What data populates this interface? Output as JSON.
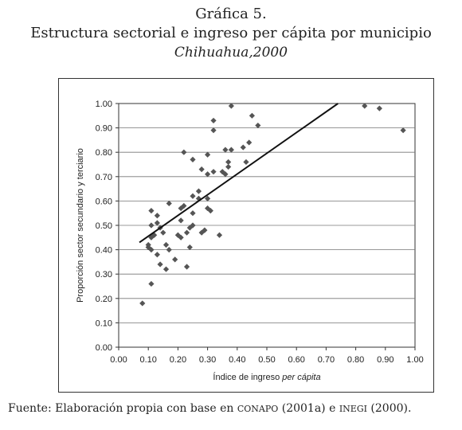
{
  "header": {
    "line1": "Gráfica 5.",
    "line2": "Estructura sectorial e ingreso per cápita por municipio",
    "line3": "Chihuahua,2000"
  },
  "source": {
    "prefix": "Fuente:  Elaboración propia con base en ",
    "org1": "CONAPO",
    "mid1": " (2001a) e ",
    "org2": "INEGI",
    "mid2": " (2000)."
  },
  "chart_data": {
    "type": "scatter",
    "title": "",
    "xlabel_prefix": "Índice de ingreso ",
    "xlabel_italic": "per cápita",
    "ylabel": "Proporción sector secundario y terciario",
    "xlim": [
      0,
      1
    ],
    "ylim": [
      0,
      1
    ],
    "xticks": [
      "0.00",
      "0.10",
      "0.20",
      "0.30",
      "0.40",
      "0.50",
      "0.60",
      "0.70",
      "0.80",
      "0.90",
      "1.00"
    ],
    "yticks": [
      "0.00",
      "0.10",
      "0.20",
      "0.30",
      "0.40",
      "0.50",
      "0.60",
      "0.70",
      "0.80",
      "0.90",
      "1.00"
    ],
    "grid": "horizontal",
    "marker_color": "#555555",
    "trendline": {
      "x": [
        0.07,
        0.74
      ],
      "y": [
        0.43,
        1.0
      ]
    },
    "points": [
      {
        "x": 0.08,
        "y": 0.18
      },
      {
        "x": 0.1,
        "y": 0.41
      },
      {
        "x": 0.1,
        "y": 0.42
      },
      {
        "x": 0.11,
        "y": 0.4
      },
      {
        "x": 0.11,
        "y": 0.45
      },
      {
        "x": 0.11,
        "y": 0.5
      },
      {
        "x": 0.11,
        "y": 0.56
      },
      {
        "x": 0.11,
        "y": 0.26
      },
      {
        "x": 0.12,
        "y": 0.46
      },
      {
        "x": 0.13,
        "y": 0.38
      },
      {
        "x": 0.13,
        "y": 0.51
      },
      {
        "x": 0.13,
        "y": 0.54
      },
      {
        "x": 0.14,
        "y": 0.34
      },
      {
        "x": 0.14,
        "y": 0.49
      },
      {
        "x": 0.15,
        "y": 0.47
      },
      {
        "x": 0.16,
        "y": 0.32
      },
      {
        "x": 0.16,
        "y": 0.42
      },
      {
        "x": 0.17,
        "y": 0.4
      },
      {
        "x": 0.17,
        "y": 0.59
      },
      {
        "x": 0.19,
        "y": 0.36
      },
      {
        "x": 0.2,
        "y": 0.46
      },
      {
        "x": 0.21,
        "y": 0.45
      },
      {
        "x": 0.21,
        "y": 0.52
      },
      {
        "x": 0.21,
        "y": 0.57
      },
      {
        "x": 0.22,
        "y": 0.8
      },
      {
        "x": 0.22,
        "y": 0.58
      },
      {
        "x": 0.23,
        "y": 0.33
      },
      {
        "x": 0.23,
        "y": 0.47
      },
      {
        "x": 0.24,
        "y": 0.41
      },
      {
        "x": 0.24,
        "y": 0.49
      },
      {
        "x": 0.25,
        "y": 0.5
      },
      {
        "x": 0.25,
        "y": 0.55
      },
      {
        "x": 0.25,
        "y": 0.62
      },
      {
        "x": 0.25,
        "y": 0.77
      },
      {
        "x": 0.27,
        "y": 0.61
      },
      {
        "x": 0.27,
        "y": 0.64
      },
      {
        "x": 0.28,
        "y": 0.47
      },
      {
        "x": 0.28,
        "y": 0.73
      },
      {
        "x": 0.29,
        "y": 0.48
      },
      {
        "x": 0.3,
        "y": 0.57
      },
      {
        "x": 0.3,
        "y": 0.61
      },
      {
        "x": 0.3,
        "y": 0.71
      },
      {
        "x": 0.3,
        "y": 0.79
      },
      {
        "x": 0.31,
        "y": 0.56
      },
      {
        "x": 0.32,
        "y": 0.72
      },
      {
        "x": 0.32,
        "y": 0.89
      },
      {
        "x": 0.32,
        "y": 0.93
      },
      {
        "x": 0.34,
        "y": 0.46
      },
      {
        "x": 0.35,
        "y": 0.72
      },
      {
        "x": 0.36,
        "y": 0.71
      },
      {
        "x": 0.36,
        "y": 0.81
      },
      {
        "x": 0.37,
        "y": 0.74
      },
      {
        "x": 0.37,
        "y": 0.76
      },
      {
        "x": 0.38,
        "y": 0.81
      },
      {
        "x": 0.38,
        "y": 0.99
      },
      {
        "x": 0.42,
        "y": 0.82
      },
      {
        "x": 0.43,
        "y": 0.76
      },
      {
        "x": 0.44,
        "y": 0.84
      },
      {
        "x": 0.45,
        "y": 0.95
      },
      {
        "x": 0.47,
        "y": 0.91
      },
      {
        "x": 0.83,
        "y": 0.99
      },
      {
        "x": 0.88,
        "y": 0.98
      },
      {
        "x": 0.96,
        "y": 0.89
      }
    ]
  }
}
